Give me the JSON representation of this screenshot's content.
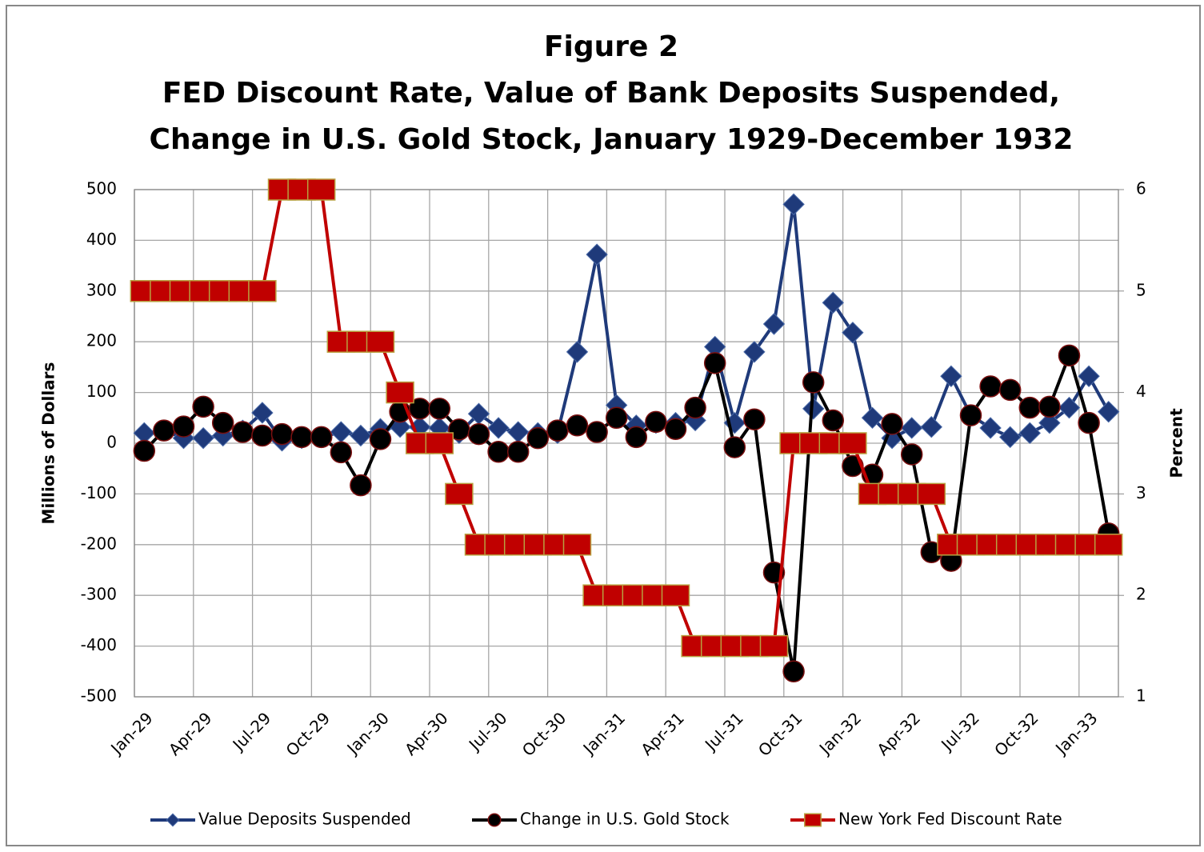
{
  "chart_data": {
    "type": "line",
    "title": "Figure 2",
    "subtitle": [
      "FED Discount Rate, Value of Bank Deposits Suspended,",
      "Change in U.S. Gold Stock, January 1929-December 1932"
    ],
    "y_label": "Millions of Dollars",
    "y2_label": "Percent",
    "categories": [
      "Jan-29",
      null,
      null,
      "Apr-29",
      null,
      null,
      "Jul-29",
      null,
      null,
      "Oct-29",
      null,
      null,
      "Jan-30",
      null,
      null,
      "Apr-30",
      null,
      null,
      "Jul-30",
      null,
      null,
      "Oct-30",
      null,
      null,
      "Jan-31",
      null,
      null,
      "Apr-31",
      null,
      null,
      "Jul-31",
      null,
      null,
      "Oct-31",
      null,
      null,
      "Jan-32",
      null,
      null,
      "Apr-32",
      null,
      null,
      "Jul-32",
      null,
      null,
      "Oct-32",
      null,
      null,
      "Jan-33",
      null
    ],
    "series": [
      {
        "name": "Value Deposits Suspended",
        "color": "#1f3a7a",
        "marker": "diamond",
        "values": [
          20,
          25,
          10,
          10,
          15,
          25,
          60,
          5,
          10,
          12,
          22,
          15,
          28,
          32,
          32,
          30,
          20,
          58,
          30,
          22,
          20,
          20,
          180,
          372,
          75,
          35,
          40,
          40,
          45,
          190,
          40,
          180,
          235,
          471,
          68,
          277,
          218,
          50,
          10,
          30,
          32,
          132,
          55,
          30,
          12,
          20,
          40,
          70,
          132,
          62
        ]
      },
      {
        "name": "Change in U.S. Gold Stock",
        "color": "#000000",
        "marker": "circle",
        "values": [
          -15,
          25,
          33,
          72,
          40,
          22,
          15,
          18,
          12,
          12,
          -18,
          -83,
          8,
          62,
          68,
          68,
          27,
          18,
          -17,
          -17,
          10,
          25,
          35,
          22,
          50,
          12,
          42,
          28,
          70,
          158,
          -8,
          47,
          -255,
          -450,
          120,
          45,
          -45,
          -62,
          38,
          -22,
          -215,
          -232,
          55,
          112,
          105,
          70,
          72,
          173,
          40,
          -178
        ]
      },
      {
        "name": "New York Fed Discount Rate",
        "color": "#c00000",
        "marker": "square",
        "axis": "y2",
        "values": [
          5,
          5,
          5,
          5,
          5,
          5,
          5,
          6,
          6,
          6,
          4.5,
          4.5,
          4.5,
          4,
          3.5,
          3.5,
          3,
          2.5,
          2.5,
          2.5,
          2.5,
          2.5,
          2.5,
          2,
          2,
          2,
          2,
          2,
          1.5,
          1.5,
          1.5,
          1.5,
          1.5,
          3.5,
          3.5,
          3.5,
          3.5,
          3,
          3,
          3,
          3,
          2.5,
          2.5,
          2.5,
          2.5,
          2.5,
          2.5,
          2.5,
          2.5,
          2.5
        ]
      }
    ],
    "ylim": [
      -500,
      500
    ],
    "yticks": [
      -500,
      -400,
      -300,
      -200,
      -100,
      0,
      100,
      200,
      300,
      400,
      500
    ],
    "y2lim": [
      1,
      6
    ],
    "y2ticks": [
      1,
      2,
      3,
      4,
      5,
      6
    ],
    "grid": true,
    "legend": "bottom"
  }
}
